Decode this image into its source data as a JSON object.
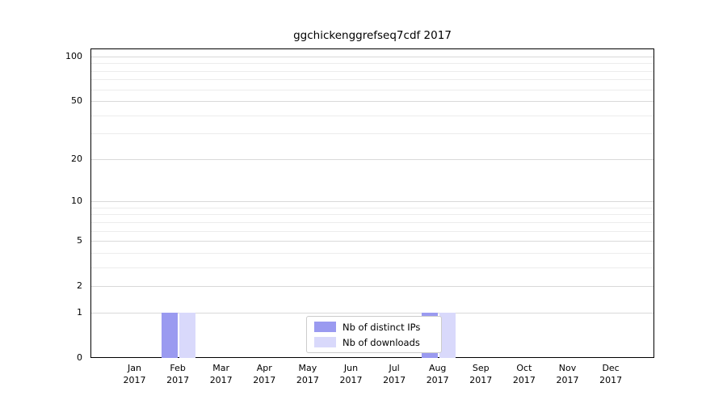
{
  "chart_data": {
    "type": "bar",
    "title": "ggchickenggrefseq7cdf 2017",
    "categories": [
      "Jan",
      "Feb",
      "Mar",
      "Apr",
      "May",
      "Jun",
      "Jul",
      "Aug",
      "Sep",
      "Oct",
      "Nov",
      "Dec"
    ],
    "year": "2017",
    "series": [
      {
        "name": "Nb of distinct IPs",
        "color": "#9a9af0",
        "values": [
          0,
          1,
          0,
          0,
          0,
          0,
          0,
          1,
          0,
          0,
          0,
          0
        ]
      },
      {
        "name": "Nb of downloads",
        "color": "#d9d9fb",
        "values": [
          0,
          1,
          0,
          0,
          0,
          0,
          0,
          1,
          0,
          0,
          0,
          0
        ]
      }
    ],
    "y_ticks": [
      0,
      1,
      2,
      5,
      10,
      20,
      50,
      100
    ],
    "ylim": [
      0,
      100
    ],
    "scale": "log1p",
    "grid": true,
    "legend_position": "bottom-center"
  }
}
